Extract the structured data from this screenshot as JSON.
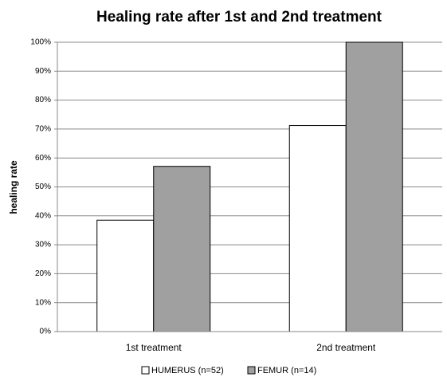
{
  "chart_data": {
    "type": "bar",
    "title": "Healing rate after 1st and 2nd treatment",
    "y_label": "healing rate",
    "categories": [
      "1st treatment",
      "2nd treatment"
    ],
    "series": [
      {
        "name": "HUMERUS (n=52)",
        "color": "#ffffff",
        "values": [
          38.5,
          71.2
        ]
      },
      {
        "name": "FEMUR (n=14)",
        "color": "#a0a0a0",
        "values": [
          57.1,
          100
        ]
      }
    ],
    "ylim": [
      0,
      100
    ],
    "yticks": [
      {
        "value": 0,
        "label": "0%"
      },
      {
        "value": 10,
        "label": "10%"
      },
      {
        "value": 20,
        "label": "20%"
      },
      {
        "value": 30,
        "label": "30%"
      },
      {
        "value": 40,
        "label": "40%"
      },
      {
        "value": 50,
        "label": "50%"
      },
      {
        "value": 60,
        "label": "60%"
      },
      {
        "value": 70,
        "label": "70%"
      },
      {
        "value": 80,
        "label": "80%"
      },
      {
        "value": 90,
        "label": "90%"
      },
      {
        "value": 100,
        "label": "100%"
      }
    ],
    "grid": true,
    "legend": "bottom"
  }
}
